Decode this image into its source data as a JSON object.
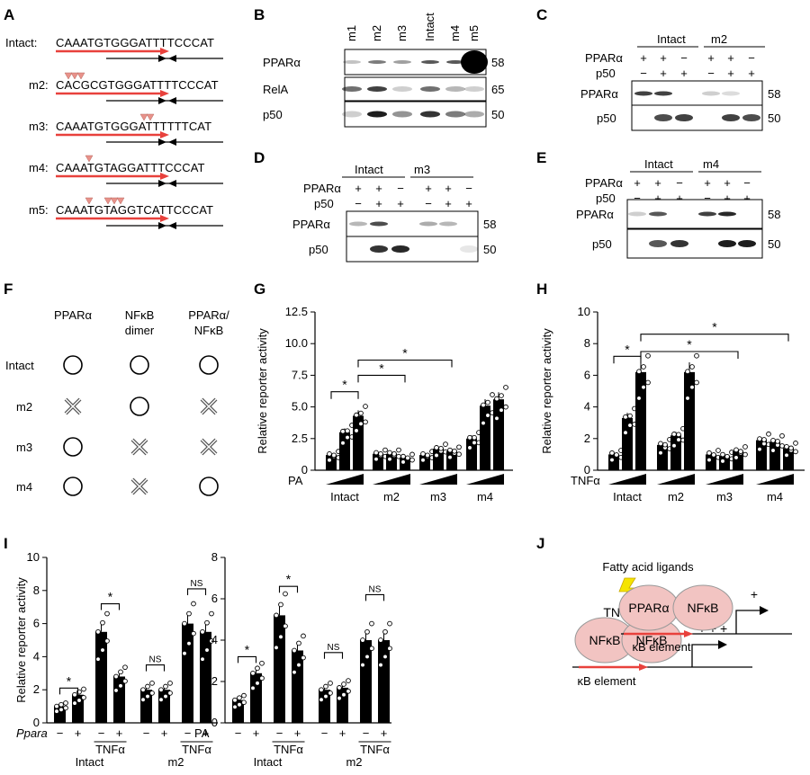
{
  "panels": {
    "A": "A",
    "B": "B",
    "C": "C",
    "D": "D",
    "E": "E",
    "F": "F",
    "G": "G",
    "H": "H",
    "I": "I",
    "J": "J"
  },
  "seqs": [
    {
      "label": "Intact:",
      "seq": "CAAATGTGGGATTTTCCCAT"
    },
    {
      "label": "m2:",
      "seq": "CACGCGTGGGATTTTCCCAT"
    },
    {
      "label": "m3:",
      "seq": "CAAATGTGGGATTTTTTCAT"
    },
    {
      "label": "m4:",
      "seq": "CAAATGTAGGATTTCCCAT"
    },
    {
      "label": "m5:",
      "seq": "CAAATGTAGGTCATTCCCAT"
    }
  ],
  "blotB": {
    "lanes": [
      "m1",
      "m2",
      "m3",
      "Intact",
      "m4",
      "m5"
    ],
    "rows": [
      {
        "name": "PPARα",
        "kd": "58"
      },
      {
        "name": "RelA",
        "kd": "65"
      },
      {
        "name": "p50",
        "kd": "50"
      }
    ]
  },
  "blotC": {
    "groups": [
      "Intact",
      "m2"
    ],
    "rowlabels": [
      "PPARα",
      "p50"
    ],
    "ppar": [
      "+",
      "+",
      "−",
      "+",
      "+",
      "−"
    ],
    "p50": [
      "−",
      "+",
      "+",
      "−",
      "+",
      "+"
    ],
    "kd": [
      "58",
      "50"
    ],
    "bands": [
      "PPARα",
      "p50"
    ]
  },
  "blotD": {
    "groups": [
      "Intact",
      "m3"
    ],
    "rowlabels": [
      "PPARα",
      "p50"
    ],
    "ppar": [
      "+",
      "+",
      "−",
      "+",
      "+",
      "−"
    ],
    "p50": [
      "−",
      "+",
      "+",
      "−",
      "+",
      "+"
    ],
    "kd": [
      "58",
      "50"
    ],
    "bands": [
      "PPARα",
      "p50"
    ]
  },
  "blotE": {
    "groups": [
      "Intact",
      "m4"
    ],
    "rowlabels": [
      "PPARα",
      "p50"
    ],
    "ppar": [
      "+",
      "+",
      "−",
      "+",
      "+",
      "−"
    ],
    "p50": [
      "−",
      "+",
      "+",
      "−",
      "+",
      "+"
    ],
    "kd": [
      "58",
      "50"
    ],
    "bands": [
      "PPARα",
      "p50"
    ]
  },
  "tableF": {
    "headers": [
      "PPARα",
      "NFκB",
      "dimer",
      "PPARα/",
      "NFκB"
    ],
    "rows": [
      "Intact",
      "m2",
      "m3",
      "m4"
    ]
  },
  "chart_data": [
    {
      "type": "bar",
      "panel": "G",
      "ylabel": "Relative reporter activity",
      "ylim": [
        0,
        12.5
      ],
      "yticks": [
        "0",
        "2.5",
        "5.0",
        "7.5",
        "10.0",
        "12.5"
      ],
      "treatment": "PA",
      "categories": [
        "Intact",
        "m2",
        "m3",
        "m4"
      ],
      "values": [
        [
          1.2,
          3.0,
          4.3
        ],
        [
          1.3,
          1.3,
          1.0
        ],
        [
          1.2,
          1.7,
          1.5
        ],
        [
          2.5,
          5.1,
          5.6
        ]
      ],
      "stars": [
        "*",
        "*",
        "*"
      ]
    },
    {
      "type": "bar",
      "panel": "H",
      "ylabel": "Relative reporter activity",
      "ylim": [
        0,
        10
      ],
      "yticks": [
        "0",
        "2",
        "4",
        "6",
        "8",
        "10"
      ],
      "treatment": "TNFα",
      "categories": [
        "Intact",
        "m2",
        "m3",
        "m4"
      ],
      "values": [
        [
          1.0,
          3.3,
          6.2
        ],
        [
          1.6,
          2.2,
          6.2
        ],
        [
          1.0,
          0.9,
          1.2
        ],
        [
          1.9,
          1.8,
          1.4
        ]
      ],
      "stars": [
        "*",
        "*",
        "*"
      ]
    },
    {
      "type": "bar",
      "panel": "I-left",
      "ylabel": "Relative reporter activity",
      "ylim": [
        0,
        10
      ],
      "yticks": [
        "0",
        "2",
        "4",
        "6",
        "8",
        "10"
      ],
      "treatment": "Ppara",
      "xlabels": [
        "−",
        "+",
        "−",
        "+",
        "−",
        "+",
        "−",
        "+"
      ],
      "groups": [
        "Intact",
        "m2"
      ],
      "sub": "TNFα",
      "values": [
        1.0,
        1.7,
        5.5,
        2.8,
        2.0,
        2.0,
        6.0,
        5.5
      ],
      "annot": [
        "*",
        "*",
        "NS",
        "NS"
      ]
    },
    {
      "type": "bar",
      "panel": "I-right",
      "ylabel": "",
      "ylim": [
        0,
        8
      ],
      "yticks": [
        "0",
        "2",
        "4",
        "6",
        "8"
      ],
      "treatment": "PA",
      "xlabels": [
        "−",
        "+",
        "−",
        "+",
        "−",
        "+",
        "−",
        "+"
      ],
      "groups": [
        "Intact",
        "m2"
      ],
      "sub": "TNFα",
      "values": [
        1.1,
        2.4,
        5.2,
        3.5,
        1.6,
        1.7,
        4.0,
        4.0
      ],
      "annot": [
        "*",
        "*",
        "NS",
        "NS"
      ]
    }
  ],
  "panelJ": {
    "left_title": "TNFα",
    "left_p1": "NFκB",
    "left_p2": "NFκB",
    "left_plus": "+ + +",
    "left_elem": "κB element",
    "right_title": "Fatty acid ligands",
    "right_p1": "PPARα",
    "right_p2": "NFκB",
    "right_plus": "+",
    "right_elem": "κB element"
  },
  "colors": {
    "red": "#e8413c",
    "pink": "#f2c4c2",
    "triangle": "#e8928a",
    "bar": "#000000"
  }
}
